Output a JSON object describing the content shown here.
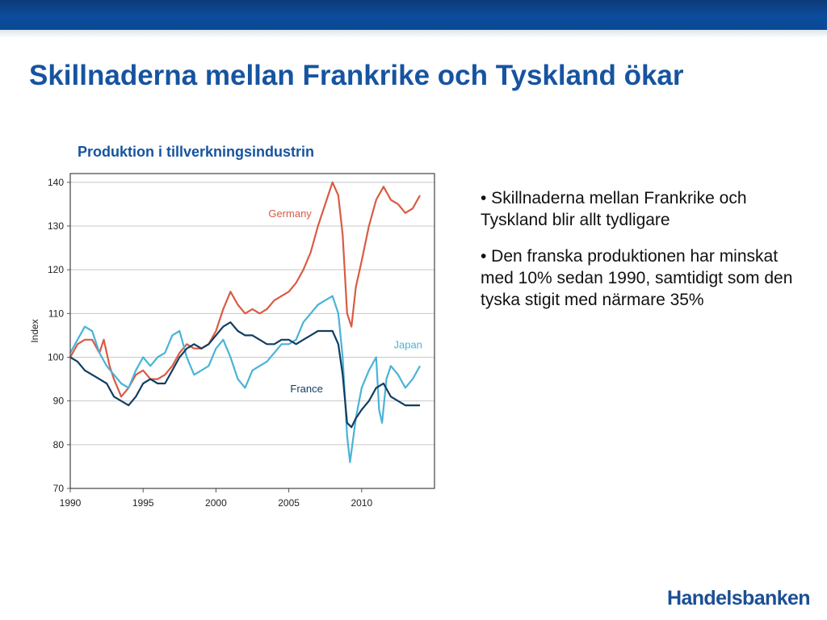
{
  "header": {
    "band_color": "#0b4c9c",
    "title": "Skillnaderna mellan Frankrike och Tyskland ökar"
  },
  "chart_data": {
    "type": "line",
    "title": "Produktion i tillverkningsindustrin",
    "xlabel": "",
    "ylabel": "Index",
    "xlim": [
      1990,
      2015
    ],
    "ylim": [
      70,
      142
    ],
    "x_ticks": [
      1990,
      1995,
      2000,
      2005,
      2010
    ],
    "y_ticks": [
      70,
      80,
      90,
      100,
      110,
      120,
      130,
      140
    ],
    "grid": "horizontal",
    "legend": "inline labels",
    "series": [
      {
        "name": "Germany",
        "color": "#d95b43",
        "points": [
          [
            1990,
            100
          ],
          [
            1990.5,
            103
          ],
          [
            1991,
            104
          ],
          [
            1991.5,
            104
          ],
          [
            1992,
            101
          ],
          [
            1992.3,
            104
          ],
          [
            1992.7,
            98
          ],
          [
            1993,
            95
          ],
          [
            1993.5,
            91
          ],
          [
            1994,
            93
          ],
          [
            1994.5,
            96
          ],
          [
            1995,
            97
          ],
          [
            1995.5,
            95
          ],
          [
            1996,
            95
          ],
          [
            1996.5,
            96
          ],
          [
            1997,
            98
          ],
          [
            1997.5,
            101
          ],
          [
            1998,
            103
          ],
          [
            1998.5,
            102
          ],
          [
            1999,
            102
          ],
          [
            1999.5,
            103
          ],
          [
            2000,
            106
          ],
          [
            2000.5,
            111
          ],
          [
            2001,
            115
          ],
          [
            2001.5,
            112
          ],
          [
            2002,
            110
          ],
          [
            2002.5,
            111
          ],
          [
            2003,
            110
          ],
          [
            2003.5,
            111
          ],
          [
            2004,
            113
          ],
          [
            2004.5,
            114
          ],
          [
            2005,
            115
          ],
          [
            2005.5,
            117
          ],
          [
            2006,
            120
          ],
          [
            2006.5,
            124
          ],
          [
            2007,
            130
          ],
          [
            2007.5,
            135
          ],
          [
            2008,
            140
          ],
          [
            2008.4,
            137
          ],
          [
            2008.7,
            128
          ],
          [
            2009,
            110
          ],
          [
            2009.3,
            107
          ],
          [
            2009.6,
            116
          ],
          [
            2010,
            122
          ],
          [
            2010.5,
            130
          ],
          [
            2011,
            136
          ],
          [
            2011.5,
            139
          ],
          [
            2012,
            136
          ],
          [
            2012.5,
            135
          ],
          [
            2013,
            133
          ],
          [
            2013.5,
            134
          ],
          [
            2014,
            137
          ]
        ]
      },
      {
        "name": "Japan",
        "color": "#4ab3d6",
        "points": [
          [
            1990,
            101
          ],
          [
            1990.5,
            104
          ],
          [
            1991,
            107
          ],
          [
            1991.5,
            106
          ],
          [
            1992,
            101
          ],
          [
            1992.5,
            98
          ],
          [
            1993,
            96
          ],
          [
            1993.5,
            94
          ],
          [
            1994,
            93
          ],
          [
            1994.5,
            97
          ],
          [
            1995,
            100
          ],
          [
            1995.5,
            98
          ],
          [
            1996,
            100
          ],
          [
            1996.5,
            101
          ],
          [
            1997,
            105
          ],
          [
            1997.5,
            106
          ],
          [
            1998,
            100
          ],
          [
            1998.5,
            96
          ],
          [
            1999,
            97
          ],
          [
            1999.5,
            98
          ],
          [
            2000,
            102
          ],
          [
            2000.5,
            104
          ],
          [
            2001,
            100
          ],
          [
            2001.5,
            95
          ],
          [
            2002,
            93
          ],
          [
            2002.5,
            97
          ],
          [
            2003,
            98
          ],
          [
            2003.5,
            99
          ],
          [
            2004,
            101
          ],
          [
            2004.5,
            103
          ],
          [
            2005,
            103
          ],
          [
            2005.5,
            104
          ],
          [
            2006,
            108
          ],
          [
            2006.5,
            110
          ],
          [
            2007,
            112
          ],
          [
            2007.5,
            113
          ],
          [
            2008,
            114
          ],
          [
            2008.4,
            110
          ],
          [
            2008.7,
            100
          ],
          [
            2009,
            82
          ],
          [
            2009.2,
            76
          ],
          [
            2009.6,
            86
          ],
          [
            2010,
            93
          ],
          [
            2010.5,
            97
          ],
          [
            2011,
            100
          ],
          [
            2011.2,
            88
          ],
          [
            2011.4,
            85
          ],
          [
            2011.7,
            95
          ],
          [
            2012,
            98
          ],
          [
            2012.5,
            96
          ],
          [
            2013,
            93
          ],
          [
            2013.5,
            95
          ],
          [
            2014,
            98
          ]
        ]
      },
      {
        "name": "France",
        "color": "#123d63",
        "points": [
          [
            1990,
            100
          ],
          [
            1990.5,
            99
          ],
          [
            1991,
            97
          ],
          [
            1991.5,
            96
          ],
          [
            1992,
            95
          ],
          [
            1992.5,
            94
          ],
          [
            1993,
            91
          ],
          [
            1993.5,
            90
          ],
          [
            1994,
            89
          ],
          [
            1994.5,
            91
          ],
          [
            1995,
            94
          ],
          [
            1995.5,
            95
          ],
          [
            1996,
            94
          ],
          [
            1996.5,
            94
          ],
          [
            1997,
            97
          ],
          [
            1997.5,
            100
          ],
          [
            1998,
            102
          ],
          [
            1998.5,
            103
          ],
          [
            1999,
            102
          ],
          [
            1999.5,
            103
          ],
          [
            2000,
            105
          ],
          [
            2000.5,
            107
          ],
          [
            2001,
            108
          ],
          [
            2001.5,
            106
          ],
          [
            2002,
            105
          ],
          [
            2002.5,
            105
          ],
          [
            2003,
            104
          ],
          [
            2003.5,
            103
          ],
          [
            2004,
            103
          ],
          [
            2004.5,
            104
          ],
          [
            2005,
            104
          ],
          [
            2005.5,
            103
          ],
          [
            2006,
            104
          ],
          [
            2006.5,
            105
          ],
          [
            2007,
            106
          ],
          [
            2007.5,
            106
          ],
          [
            2008,
            106
          ],
          [
            2008.4,
            103
          ],
          [
            2008.7,
            96
          ],
          [
            2009,
            85
          ],
          [
            2009.3,
            84
          ],
          [
            2009.6,
            86
          ],
          [
            2010,
            88
          ],
          [
            2010.5,
            90
          ],
          [
            2011,
            93
          ],
          [
            2011.5,
            94
          ],
          [
            2012,
            91
          ],
          [
            2012.5,
            90
          ],
          [
            2013,
            89
          ],
          [
            2013.5,
            89
          ],
          [
            2014,
            89
          ]
        ]
      }
    ],
    "series_labels": [
      {
        "text": "Germany",
        "x": 2003.6,
        "y": 132,
        "color": "#d95b43"
      },
      {
        "text": "Japan",
        "x": 2012.2,
        "y": 102,
        "color": "#4ab3d6"
      },
      {
        "text": "France",
        "x": 2005.1,
        "y": 92,
        "color": "#123d63"
      }
    ]
  },
  "bullets": [
    "• Skillnaderna mellan Frankrike och Tyskland blir allt tydligare",
    "• Den franska produktionen har minskat med 10% sedan 1990, samtidigt som den tyska stigit med närmare 35%"
  ],
  "footer": {
    "logo_text": "Handelsbanken",
    "logo_color": "#1a4f96"
  }
}
